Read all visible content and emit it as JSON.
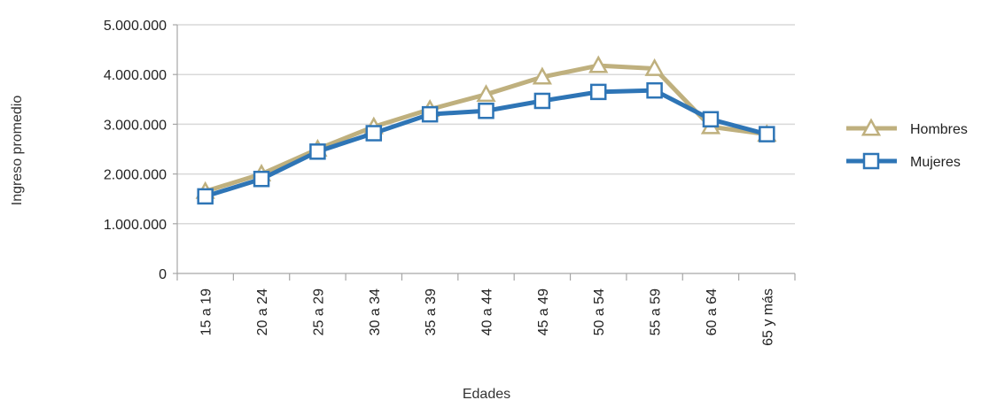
{
  "chart_data": {
    "type": "line",
    "title": "",
    "xlabel": "Edades",
    "ylabel": "Ingreso promedio",
    "categories": [
      "15 a 19",
      "20 a 24",
      "25 a 29",
      "30 a 34",
      "35 a 39",
      "40 a 44",
      "45 a 49",
      "50 a 54",
      "55 a 59",
      "60 a 64",
      "65 y más"
    ],
    "y_ticks": [
      "0",
      "1.000.000",
      "2.000.000",
      "3.000.000",
      "4.000.000",
      "5.000.000"
    ],
    "ylim": [
      0,
      5000000
    ],
    "grid": true,
    "legend_position": "right",
    "series": [
      {
        "name": "Hombres",
        "marker": "triangle",
        "color": "#bfb07e",
        "values": [
          1650000,
          2000000,
          2500000,
          2950000,
          3300000,
          3600000,
          3950000,
          4180000,
          4120000,
          2950000,
          2800000
        ]
      },
      {
        "name": "Mujeres",
        "marker": "square",
        "color": "#2e75b6",
        "values": [
          1550000,
          1900000,
          2450000,
          2820000,
          3200000,
          3270000,
          3470000,
          3650000,
          3680000,
          3100000,
          2800000
        ]
      }
    ]
  }
}
